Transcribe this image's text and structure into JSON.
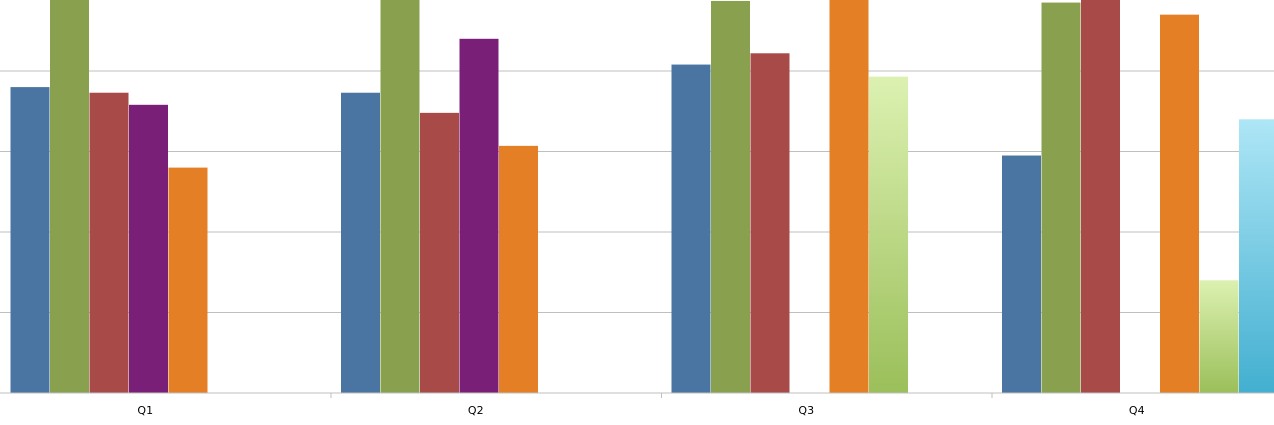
{
  "chart_data": {
    "type": "bar",
    "title": "",
    "xlabel": "",
    "ylabel": "",
    "categories": [
      "Q1",
      "Q2",
      "Q3",
      "Q4"
    ],
    "ylim": [
      0,
      5
    ],
    "grid": true,
    "series": [
      {
        "color": "#4a74a1",
        "values": [
          3.8,
          3.73,
          4.08,
          2.95
        ]
      },
      {
        "color": "#89a04f",
        "values": [
          5.0,
          5.0,
          4.87,
          4.85
        ]
      },
      {
        "color": "#a74a48",
        "values": [
          3.73,
          3.48,
          4.22,
          5.0
        ]
      },
      {
        "color": "#7a1f78",
        "values": [
          3.58,
          4.4,
          null,
          null
        ]
      },
      {
        "color": "#e57f25",
        "values": [
          2.8,
          3.07,
          5.0,
          4.7
        ]
      },
      {
        "color": "#b5d97a",
        "gradient": [
          "#dcf1b1",
          "#9bbf5a"
        ],
        "values": [
          null,
          null,
          3.93,
          1.4
        ]
      },
      {
        "color": "#5dbcd8",
        "gradient": [
          "#aee6f6",
          "#43afd0"
        ],
        "values": [
          null,
          null,
          null,
          3.4
        ]
      }
    ]
  }
}
